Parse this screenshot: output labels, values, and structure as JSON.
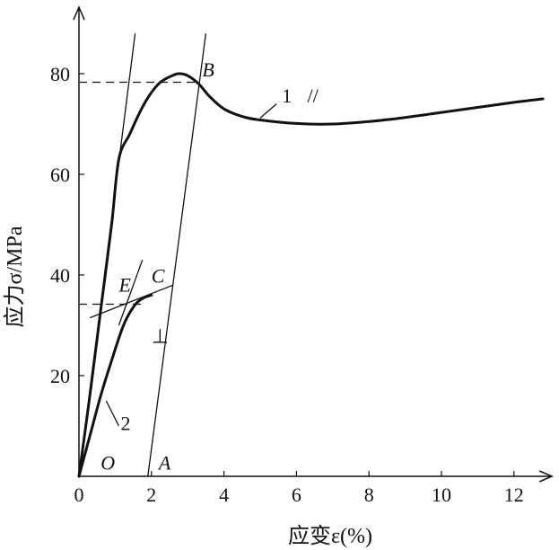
{
  "chart_data": {
    "type": "line",
    "title": "",
    "xlabel": "应变ε(%)",
    "ylabel": "应力σ/MPa",
    "xlim": [
      0,
      12.8
    ],
    "ylim": [
      0,
      88
    ],
    "x_ticks": [
      0,
      2,
      4,
      6,
      8,
      10,
      12
    ],
    "y_ticks": [
      20,
      40,
      60,
      80
    ],
    "x_tick_labels": [
      "0",
      "2",
      "4",
      "6",
      "8",
      "10",
      "12"
    ],
    "y_tick_labels": [
      "20",
      "40",
      "60",
      "80"
    ],
    "grid": false,
    "series": [
      {
        "name": "1",
        "x": [
          0,
          0.3,
          0.6,
          0.9,
          1.1,
          1.4,
          1.8,
          2.2,
          2.6,
          2.8,
          3.0,
          3.3,
          3.6,
          4.0,
          4.5,
          5.0,
          6.0,
          7.0,
          8.0,
          9.0,
          10.0,
          11.0,
          12.0,
          12.8
        ],
        "y": [
          0,
          16,
          33,
          50,
          63,
          68,
          74,
          78,
          79.7,
          80,
          79.6,
          78,
          75.5,
          73,
          71.5,
          70.8,
          70.1,
          70,
          70.5,
          71.3,
          72.3,
          73.3,
          74.3,
          75
        ]
      },
      {
        "name": "2",
        "x": [
          0,
          0.3,
          0.6,
          0.9,
          1.2,
          1.4,
          1.6,
          1.8,
          2.0
        ],
        "y": [
          0,
          8,
          16,
          23,
          29.5,
          32.5,
          34.5,
          35.5,
          36
        ]
      }
    ],
    "construction_lines": [
      {
        "x": [
          0,
          1.55
        ],
        "y": [
          0,
          88
        ]
      },
      {
        "x": [
          1.9,
          3.5
        ],
        "y": [
          0,
          88
        ]
      },
      {
        "x": [
          0.3,
          2.6
        ],
        "y": [
          31.5,
          38
        ]
      },
      {
        "x": [
          1.1,
          1.75
        ],
        "y": [
          30,
          43
        ]
      }
    ],
    "reference_lines": [
      {
        "x": [
          0,
          3.3
        ],
        "y": [
          78.3,
          78.3
        ]
      },
      {
        "x": [
          0,
          1.8
        ],
        "y": [
          34.2,
          34.2
        ]
      }
    ],
    "annotations": [
      {
        "text": "B",
        "x": 3.4,
        "y": 79.5
      },
      {
        "text": "1",
        "x": 5.6,
        "y": 74.3
      },
      {
        "text": "//",
        "x": 6.3,
        "y": 74.3
      },
      {
        "text": "C",
        "x": 2.0,
        "y": 38.5
      },
      {
        "text": "E",
        "x": 1.1,
        "y": 36.7
      },
      {
        "text": "⊥",
        "x": 2.0,
        "y": 26.5
      },
      {
        "text": "2",
        "x": 1.15,
        "y": 9.2
      },
      {
        "text": "O",
        "x": 0.6,
        "y": 1.3
      },
      {
        "text": "A",
        "x": 2.2,
        "y": 1.3
      }
    ]
  }
}
